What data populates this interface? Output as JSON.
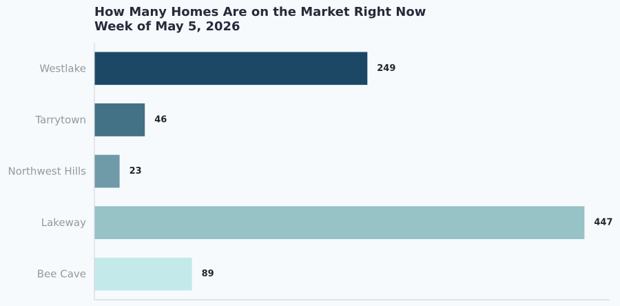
{
  "chart_data": {
    "type": "bar",
    "orientation": "horizontal",
    "title": "How Many Homes Are on the Market Right Now",
    "subtitle": "Week of May 5, 2026",
    "categories": [
      "Westlake",
      "Tarrytown",
      "Northwest Hills",
      "Lakeway",
      "Bee Cave"
    ],
    "values": [
      249,
      46,
      23,
      447,
      89
    ],
    "value_labels": [
      "249",
      "46",
      "23",
      "447",
      "89"
    ],
    "colors": [
      "#1c4866",
      "#437185",
      "#6f9aa8",
      "#97c2c6",
      "#c3e9ea"
    ],
    "xlim": [
      0,
      470
    ],
    "xlabel": "",
    "ylabel": "",
    "grid": false,
    "legend": "none",
    "axis_color": "#d5d8dc"
  }
}
